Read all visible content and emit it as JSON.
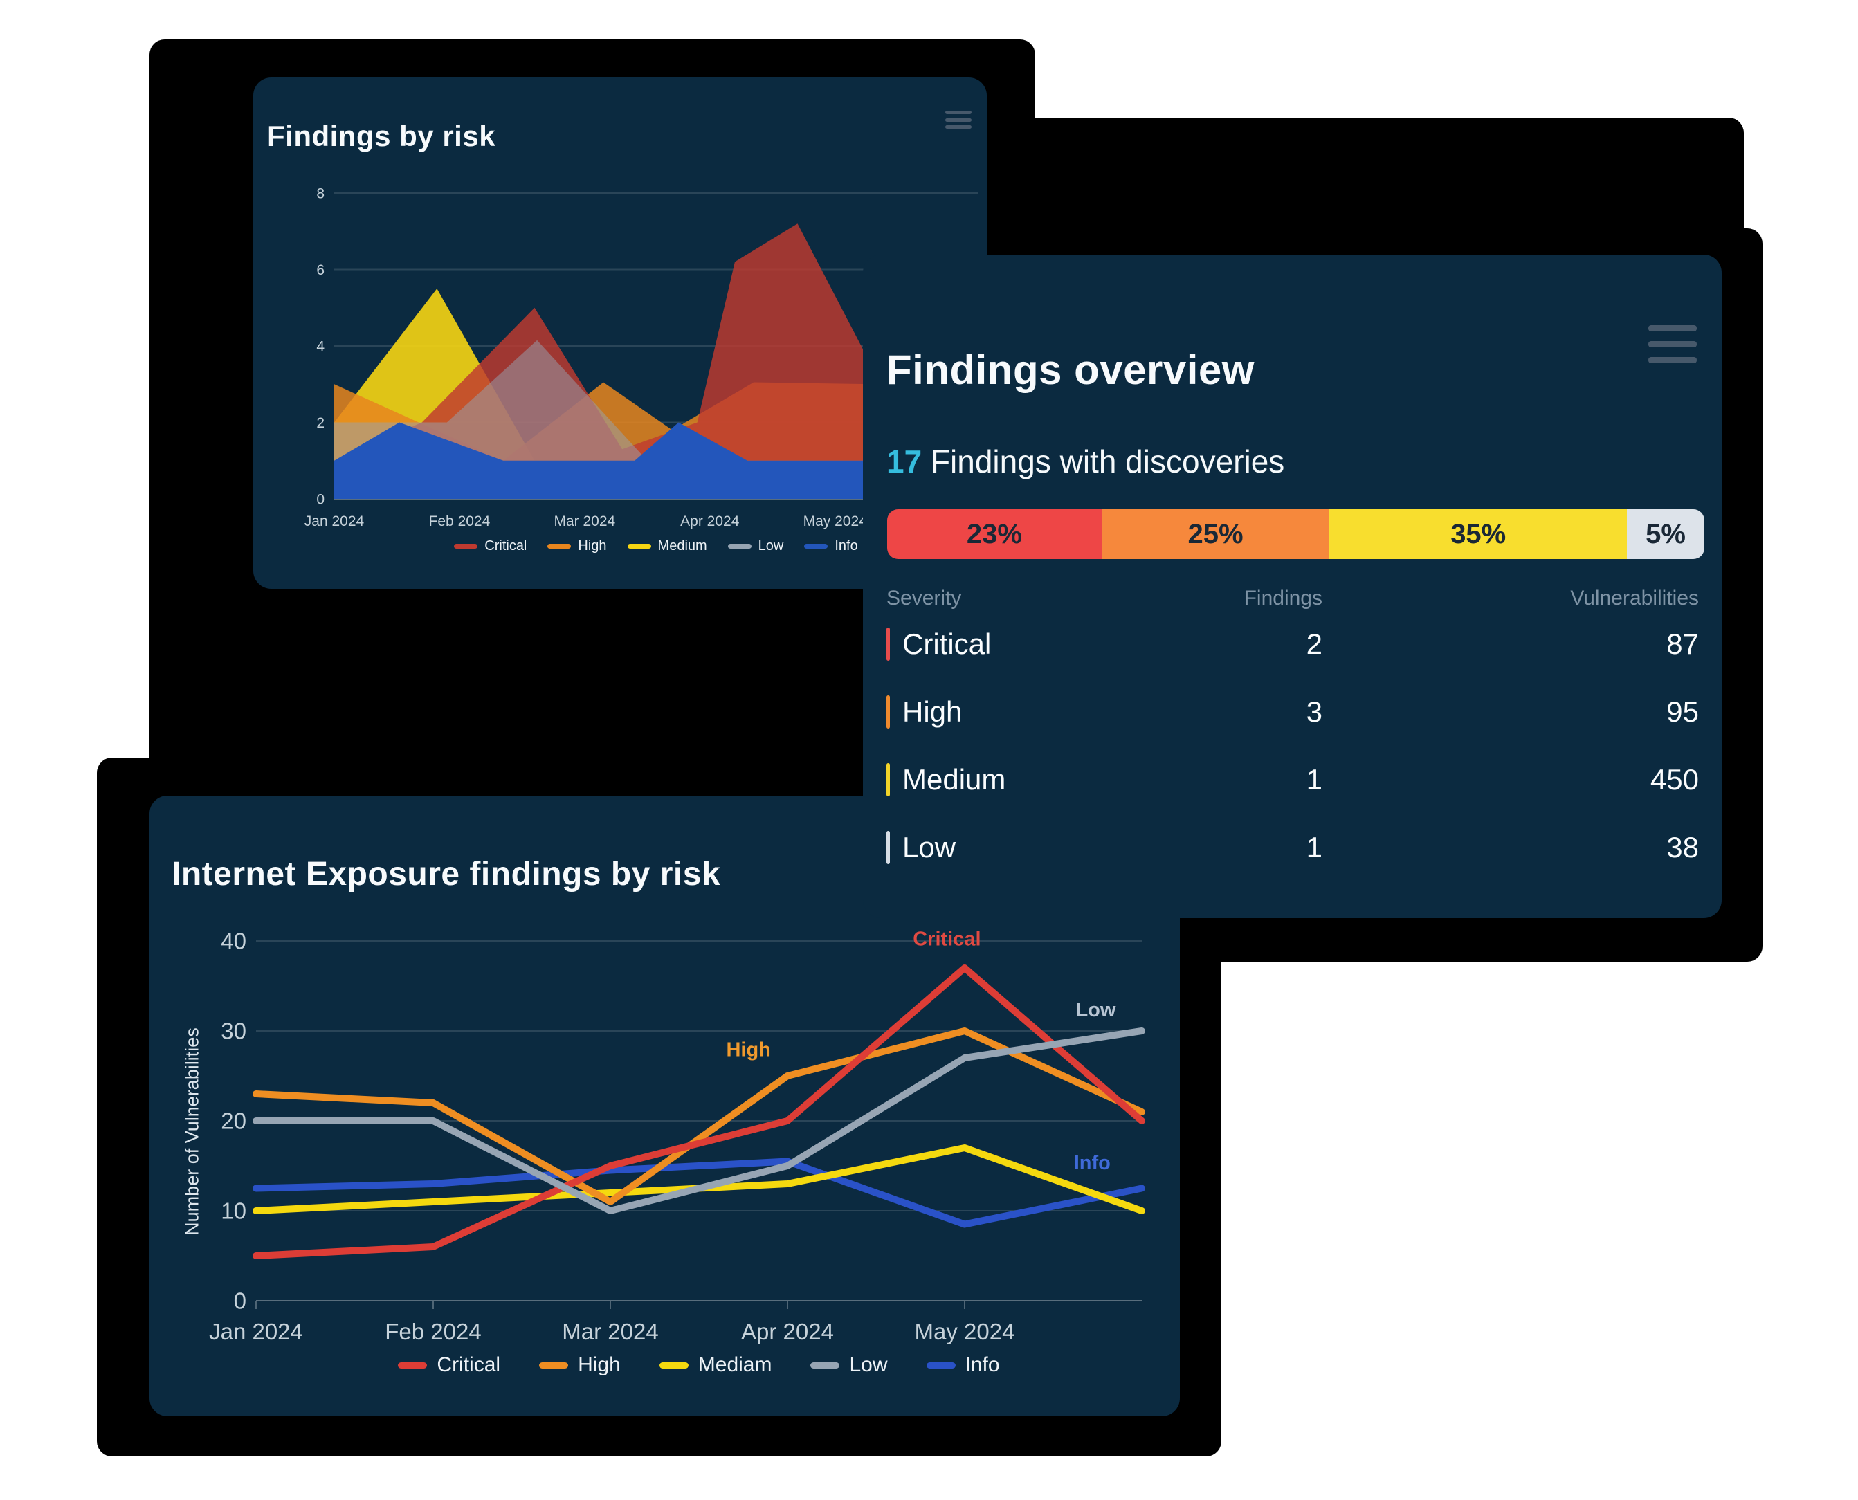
{
  "card_findings_by_risk": {
    "title": "Findings by risk",
    "menu_icon": "hamburger-icon"
  },
  "card_findings_overview": {
    "title": "Findings overview",
    "menu_icon": "hamburger-icon",
    "highlight_count": "17",
    "subtitle": " Findings with discoveries",
    "bar": {
      "segments": [
        {
          "label": "23%",
          "value": 23,
          "color": "#ee4646"
        },
        {
          "label": "25%",
          "value": 25,
          "color": "#f6883c"
        },
        {
          "label": "35%",
          "value": 35,
          "color": "#f8de2e"
        },
        {
          "label": "5%",
          "value": 5,
          "color": "#dde3ea"
        }
      ]
    },
    "table": {
      "headers": [
        "Severity",
        "Findings",
        "Vulnerabilities"
      ],
      "rows": [
        {
          "severity": "Critical",
          "color": "#e84c4c",
          "findings": "2",
          "vulnerabilities": "87"
        },
        {
          "severity": "High",
          "color": "#f08a2e",
          "findings": "3",
          "vulnerabilities": "95"
        },
        {
          "severity": "Medium",
          "color": "#f2d429",
          "findings": "1",
          "vulnerabilities": "450"
        },
        {
          "severity": "Low",
          "color": "#d7dee6",
          "findings": "1",
          "vulnerabilities": "38"
        }
      ]
    }
  },
  "card_internet_exposure": {
    "title": "Internet Exposure findings by risk",
    "ylabel": "Number of Vulnerabilities"
  },
  "chart_data": [
    {
      "id": "findings-by-risk-area",
      "type": "area",
      "title": "Findings by risk",
      "x_labels": [
        "Jan 2024",
        "Feb 2024",
        "Mar 2024",
        "Apr 2024",
        "May 2024"
      ],
      "x_range": [
        0,
        5.14
      ],
      "ylim": [
        0,
        8
      ],
      "y_ticks": [
        0,
        2,
        4,
        6,
        8
      ],
      "grid": true,
      "legend_position": "bottom",
      "draw_order": [
        "Medium",
        "High",
        "Critical",
        "Low",
        "Info"
      ],
      "series": [
        {
          "name": "Critical",
          "color": "#bf3a30",
          "opacity": 0.82,
          "points": [
            [
              0,
              1
            ],
            [
              0.7,
              2
            ],
            [
              1.6,
              5
            ],
            [
              2.3,
              1.3
            ],
            [
              2.9,
              2
            ],
            [
              3.2,
              6.2
            ],
            [
              3.7,
              7.2
            ],
            [
              4.4,
              2.8
            ],
            [
              5.14,
              2.5
            ]
          ]
        },
        {
          "name": "High",
          "color": "#e8861e",
          "opacity": 0.85,
          "points": [
            [
              0,
              3
            ],
            [
              1.35,
              1
            ],
            [
              2.15,
              3.05
            ],
            [
              2.7,
              1.8
            ],
            [
              3.35,
              3.05
            ],
            [
              4.3,
              3
            ],
            [
              5.14,
              2.9
            ]
          ]
        },
        {
          "name": "Medium",
          "color": "#f6d513",
          "opacity": 0.9,
          "points": [
            [
              0,
              2
            ],
            [
              0.82,
              5.5
            ],
            [
              1.6,
              1
            ],
            [
              5.14,
              1
            ]
          ]
        },
        {
          "name": "Low",
          "color": "#96a4b2",
          "opacity": 0.5,
          "points": [
            [
              0,
              2
            ],
            [
              0.9,
              2
            ],
            [
              1.62,
              4.15
            ],
            [
              2.5,
              1
            ],
            [
              5.14,
              1
            ]
          ]
        },
        {
          "name": "Info",
          "color": "#2356bb",
          "opacity": 1,
          "points": [
            [
              0,
              1
            ],
            [
              0.52,
              2
            ],
            [
              1.35,
              1
            ],
            [
              2.4,
              1
            ],
            [
              2.75,
              2
            ],
            [
              3.3,
              1
            ],
            [
              5.14,
              1
            ]
          ]
        }
      ]
    },
    {
      "id": "internet-exposure-line",
      "type": "line",
      "title": "Internet Exposure findings by risk",
      "ylabel": "Number of Vulnerabilities",
      "x_labels": [
        "Jan 2024",
        "Feb 2024",
        "Mar 2024",
        "Apr 2024",
        "May 2024"
      ],
      "x_range": [
        0,
        5
      ],
      "ylim": [
        0,
        40
      ],
      "y_ticks": [
        0,
        10,
        20,
        30,
        40
      ],
      "grid": true,
      "legend_position": "bottom",
      "draw_order": [
        "Info",
        "Mediam",
        "High",
        "Critical",
        "Low"
      ],
      "series": [
        {
          "name": "Critical",
          "color": "#dd3d36",
          "values": [
            5,
            6,
            15,
            20,
            37,
            20
          ]
        },
        {
          "name": "High",
          "color": "#ef8e22",
          "values": [
            23,
            22,
            11,
            25,
            30,
            21
          ]
        },
        {
          "name": "Mediam",
          "color": "#f5d90f",
          "values": [
            10,
            11,
            12,
            13,
            17,
            10
          ]
        },
        {
          "name": "Low",
          "color": "#97a5b4",
          "values": [
            20,
            20,
            10,
            15,
            27,
            30
          ]
        },
        {
          "name": "Info",
          "color": "#2a52c8",
          "values": [
            12.5,
            13,
            14.5,
            15.5,
            8.5,
            12.5
          ]
        }
      ],
      "annotations": [
        {
          "text": "Critical",
          "x": 3.9,
          "y": 39.5,
          "color": "#e04a42"
        },
        {
          "text": "High",
          "x": 2.78,
          "y": 27.2,
          "color": "#f09a2e"
        },
        {
          "text": "Low",
          "x": 4.74,
          "y": 31.6,
          "color": "#b7c4d2"
        },
        {
          "text": "Info",
          "x": 4.72,
          "y": 14.6,
          "color": "#3f6ad8"
        }
      ]
    }
  ],
  "colors": {
    "page_background": "#ffffff",
    "shadow": "#000000",
    "card_background": "#0b2a40",
    "accent_cyan": "#35bdde",
    "muted_text": "#7e93a5",
    "tick_text": "#c6d2da",
    "menu_icon": "#47596b"
  }
}
